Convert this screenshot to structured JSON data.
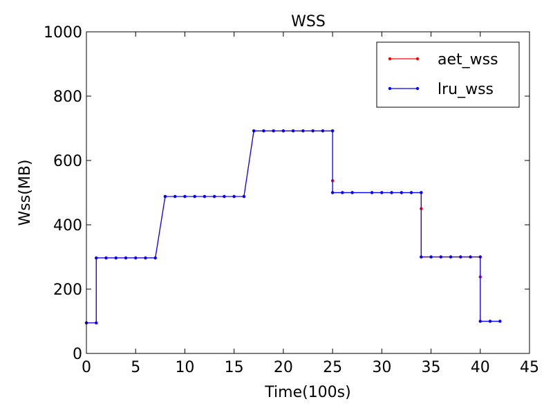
{
  "chart_data": {
    "type": "line",
    "title": "WSS",
    "xlabel": "Time(100s)",
    "ylabel": "Wss(MB)",
    "xlim": [
      0,
      45
    ],
    "ylim": [
      0,
      1000
    ],
    "xticks": [
      0,
      5,
      10,
      15,
      20,
      25,
      30,
      35,
      40,
      45
    ],
    "yticks": [
      0,
      200,
      400,
      600,
      800,
      1000
    ],
    "grid": false,
    "legend_position": "top-right",
    "series": [
      {
        "name": "aet_wss",
        "color": "#ff0000",
        "points": [
          [
            0,
            95
          ],
          [
            1,
            95
          ],
          [
            1,
            297
          ],
          [
            2,
            297
          ],
          [
            3,
            297
          ],
          [
            4,
            297
          ],
          [
            5,
            297
          ],
          [
            6,
            297
          ],
          [
            7,
            297
          ],
          [
            8,
            488
          ],
          [
            9,
            488
          ],
          [
            10,
            488
          ],
          [
            11,
            488
          ],
          [
            12,
            488
          ],
          [
            13,
            488
          ],
          [
            14,
            488
          ],
          [
            15,
            488
          ],
          [
            16,
            488
          ],
          [
            17,
            692
          ],
          [
            18,
            692
          ],
          [
            19,
            692
          ],
          [
            20,
            692
          ],
          [
            21,
            692
          ],
          [
            22,
            692
          ],
          [
            23,
            692
          ],
          [
            24,
            692
          ],
          [
            25,
            692
          ],
          [
            25,
            537
          ],
          [
            25,
            500
          ],
          [
            26,
            500
          ],
          [
            27,
            500
          ],
          [
            29,
            500
          ],
          [
            30,
            500
          ],
          [
            31,
            500
          ],
          [
            32,
            500
          ],
          [
            33,
            500
          ],
          [
            34,
            500
          ],
          [
            34,
            450
          ],
          [
            34,
            300
          ],
          [
            35,
            300
          ],
          [
            36,
            300
          ],
          [
            37,
            300
          ],
          [
            38,
            300
          ],
          [
            39,
            300
          ],
          [
            40,
            300
          ],
          [
            40,
            238
          ],
          [
            40,
            100
          ],
          [
            41,
            100
          ],
          [
            42,
            100
          ]
        ]
      },
      {
        "name": "lru_wss",
        "color": "#0000ff",
        "points": [
          [
            0,
            95
          ],
          [
            1,
            95
          ],
          [
            1,
            297
          ],
          [
            2,
            297
          ],
          [
            3,
            297
          ],
          [
            4,
            297
          ],
          [
            5,
            297
          ],
          [
            6,
            297
          ],
          [
            7,
            297
          ],
          [
            8,
            488
          ],
          [
            9,
            488
          ],
          [
            10,
            488
          ],
          [
            11,
            488
          ],
          [
            12,
            488
          ],
          [
            13,
            488
          ],
          [
            14,
            488
          ],
          [
            15,
            488
          ],
          [
            16,
            488
          ],
          [
            17,
            692
          ],
          [
            18,
            692
          ],
          [
            19,
            692
          ],
          [
            20,
            692
          ],
          [
            21,
            692
          ],
          [
            22,
            692
          ],
          [
            23,
            692
          ],
          [
            24,
            692
          ],
          [
            25,
            692
          ],
          [
            25,
            500
          ],
          [
            26,
            500
          ],
          [
            27,
            500
          ],
          [
            29,
            500
          ],
          [
            30,
            500
          ],
          [
            31,
            500
          ],
          [
            32,
            500
          ],
          [
            33,
            500
          ],
          [
            34,
            500
          ],
          [
            34,
            300
          ],
          [
            35,
            300
          ],
          [
            36,
            300
          ],
          [
            37,
            300
          ],
          [
            38,
            300
          ],
          [
            39,
            300
          ],
          [
            40,
            300
          ],
          [
            40,
            100
          ],
          [
            41,
            100
          ],
          [
            42,
            100
          ]
        ]
      }
    ]
  }
}
